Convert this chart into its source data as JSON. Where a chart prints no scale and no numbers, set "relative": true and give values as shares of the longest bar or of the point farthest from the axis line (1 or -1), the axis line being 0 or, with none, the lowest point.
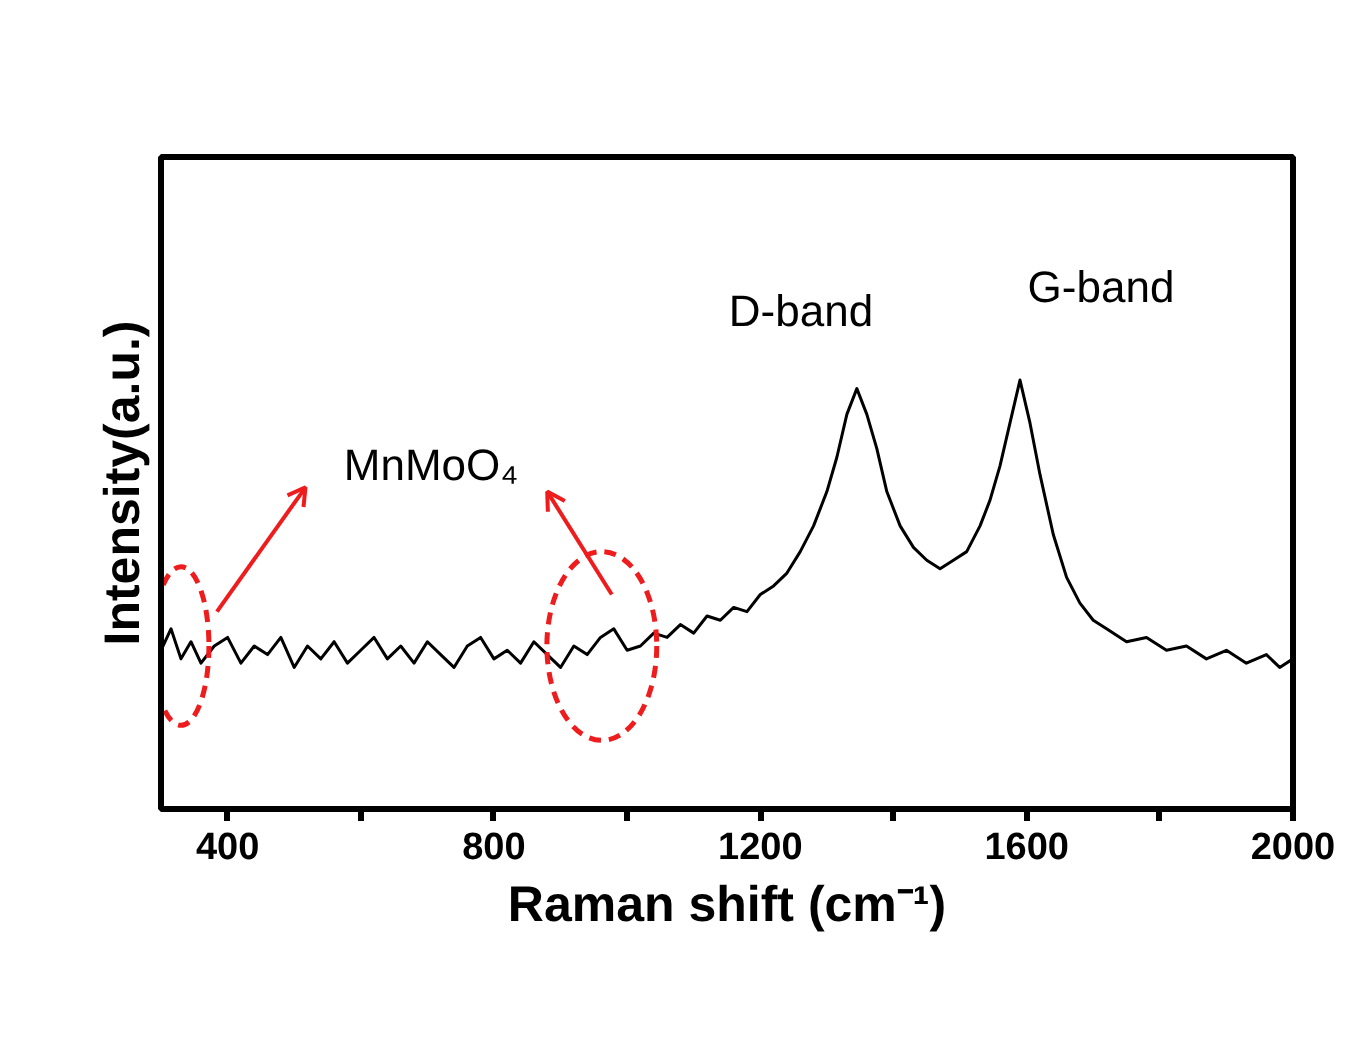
{
  "chart_data": {
    "type": "line",
    "relative": true,
    "xlabel": "Raman shift (cm⁻¹)",
    "ylabel": "Intensity(a.u.)",
    "x": [
      300,
      315,
      330,
      345,
      360,
      380,
      400,
      420,
      440,
      460,
      480,
      500,
      520,
      540,
      560,
      580,
      600,
      620,
      640,
      660,
      680,
      700,
      720,
      740,
      760,
      780,
      800,
      820,
      840,
      860,
      880,
      900,
      920,
      940,
      960,
      980,
      1000,
      1020,
      1040,
      1060,
      1080,
      1100,
      1120,
      1140,
      1160,
      1180,
      1200,
      1220,
      1240,
      1260,
      1280,
      1300,
      1315,
      1330,
      1345,
      1360,
      1375,
      1390,
      1410,
      1430,
      1450,
      1470,
      1490,
      1510,
      1530,
      1545,
      1560,
      1575,
      1590,
      1605,
      1620,
      1640,
      1660,
      1680,
      1700,
      1720,
      1750,
      1780,
      1810,
      1840,
      1870,
      1900,
      1930,
      1960,
      1980,
      2000
    ],
    "series": [
      {
        "color": "#000000",
        "values": [
          0.37,
          0.42,
          0.35,
          0.39,
          0.34,
          0.38,
          0.4,
          0.34,
          0.38,
          0.36,
          0.4,
          0.33,
          0.38,
          0.35,
          0.39,
          0.34,
          0.37,
          0.4,
          0.35,
          0.38,
          0.34,
          0.39,
          0.36,
          0.33,
          0.38,
          0.4,
          0.35,
          0.37,
          0.34,
          0.39,
          0.36,
          0.33,
          0.38,
          0.36,
          0.4,
          0.42,
          0.37,
          0.38,
          0.41,
          0.4,
          0.43,
          0.41,
          0.45,
          0.44,
          0.47,
          0.46,
          0.5,
          0.52,
          0.55,
          0.6,
          0.66,
          0.74,
          0.82,
          0.92,
          0.98,
          0.92,
          0.84,
          0.74,
          0.66,
          0.61,
          0.58,
          0.56,
          0.58,
          0.6,
          0.66,
          0.72,
          0.8,
          0.9,
          1.0,
          0.9,
          0.78,
          0.64,
          0.54,
          0.48,
          0.44,
          0.42,
          0.39,
          0.4,
          0.37,
          0.38,
          0.35,
          0.37,
          0.34,
          0.36,
          0.33,
          0.35
        ]
      }
    ],
    "xlim": [
      300,
      2000
    ],
    "xticks": [
      400,
      {
        "value": 600,
        "label": null
      },
      800,
      {
        "value": 1000,
        "label": null
      },
      1200,
      {
        "value": 1400,
        "label": null
      },
      1600,
      {
        "value": 1800,
        "label": null
      },
      2000
    ],
    "tick_labels": "x",
    "grid": false,
    "marker": "none",
    "line_style": "solid",
    "annotations": [
      "D-band",
      "G-band",
      "MnMoO₄"
    ]
  }
}
